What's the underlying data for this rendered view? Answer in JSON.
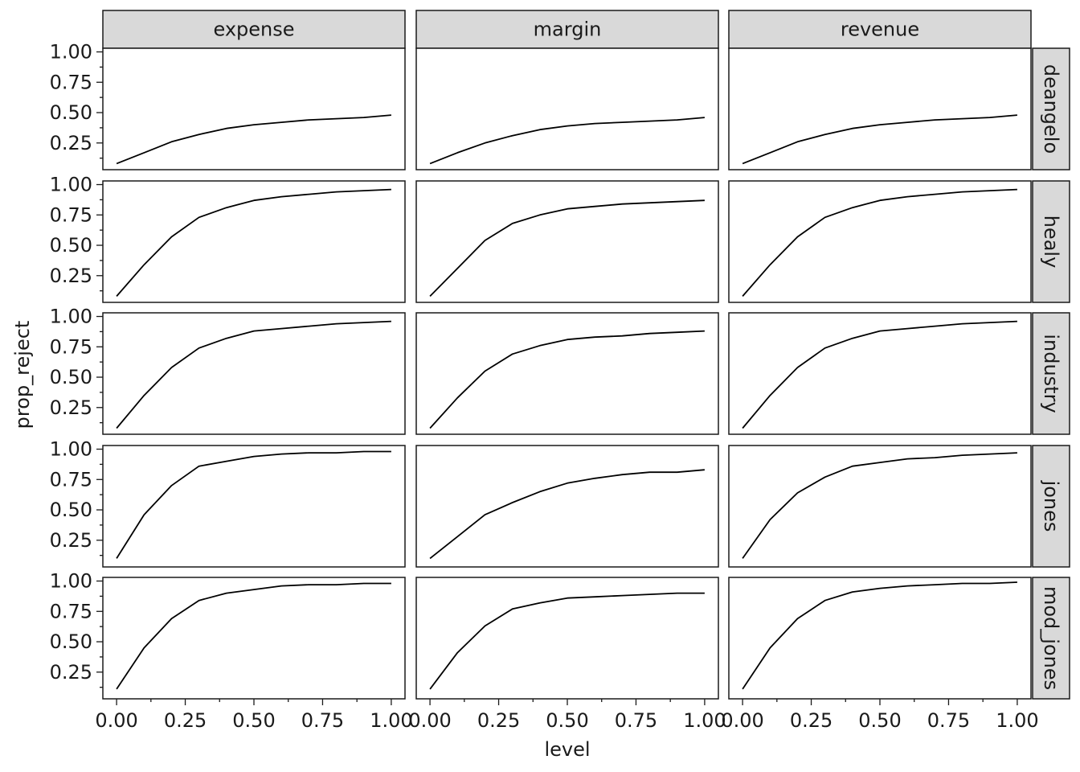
{
  "chart_data": {
    "type": "line",
    "facet_layout": "grid",
    "xlabel": "level",
    "ylabel": "prop_reject",
    "x_ticks": [
      "0.00",
      "0.25",
      "0.50",
      "0.75",
      "1.00"
    ],
    "y_ticks": [
      "0.25",
      "0.50",
      "0.75",
      "1.00"
    ],
    "xlim": [
      -0.05,
      1.05
    ],
    "ylim": [
      0.03,
      1.03
    ],
    "x_minor_step": 0.125,
    "y_minor_step": 0.125,
    "grid": false,
    "col_facets": [
      "expense",
      "margin",
      "revenue"
    ],
    "row_facets": [
      "deangelo",
      "healy",
      "industry",
      "jones",
      "mod_jones"
    ],
    "line_color": "#000000",
    "strip_color": "#d9d9d9",
    "x": [
      0,
      0.1,
      0.2,
      0.3,
      0.4,
      0.5,
      0.6,
      0.7,
      0.8,
      0.9,
      1.0
    ],
    "panels": [
      {
        "row": "deangelo",
        "col": "expense",
        "values": [
          0.08,
          0.17,
          0.26,
          0.32,
          0.37,
          0.4,
          0.42,
          0.44,
          0.45,
          0.46,
          0.48
        ]
      },
      {
        "row": "deangelo",
        "col": "margin",
        "values": [
          0.08,
          0.17,
          0.25,
          0.31,
          0.36,
          0.39,
          0.41,
          0.42,
          0.43,
          0.44,
          0.46
        ]
      },
      {
        "row": "deangelo",
        "col": "revenue",
        "values": [
          0.08,
          0.17,
          0.26,
          0.32,
          0.37,
          0.4,
          0.42,
          0.44,
          0.45,
          0.46,
          0.48
        ]
      },
      {
        "row": "healy",
        "col": "expense",
        "values": [
          0.08,
          0.34,
          0.57,
          0.73,
          0.81,
          0.87,
          0.9,
          0.92,
          0.94,
          0.95,
          0.96
        ]
      },
      {
        "row": "healy",
        "col": "margin",
        "values": [
          0.08,
          0.31,
          0.54,
          0.68,
          0.75,
          0.8,
          0.82,
          0.84,
          0.85,
          0.86,
          0.87
        ]
      },
      {
        "row": "healy",
        "col": "revenue",
        "values": [
          0.08,
          0.34,
          0.57,
          0.73,
          0.81,
          0.87,
          0.9,
          0.92,
          0.94,
          0.95,
          0.96
        ]
      },
      {
        "row": "industry",
        "col": "expense",
        "values": [
          0.08,
          0.35,
          0.58,
          0.74,
          0.82,
          0.88,
          0.9,
          0.92,
          0.94,
          0.95,
          0.96
        ]
      },
      {
        "row": "industry",
        "col": "margin",
        "values": [
          0.08,
          0.33,
          0.55,
          0.69,
          0.76,
          0.81,
          0.83,
          0.84,
          0.86,
          0.87,
          0.88
        ]
      },
      {
        "row": "industry",
        "col": "revenue",
        "values": [
          0.08,
          0.35,
          0.58,
          0.74,
          0.82,
          0.88,
          0.9,
          0.92,
          0.94,
          0.95,
          0.96
        ]
      },
      {
        "row": "jones",
        "col": "expense",
        "values": [
          0.1,
          0.46,
          0.7,
          0.86,
          0.9,
          0.94,
          0.96,
          0.97,
          0.97,
          0.98,
          0.98
        ]
      },
      {
        "row": "jones",
        "col": "margin",
        "values": [
          0.1,
          0.28,
          0.46,
          0.56,
          0.65,
          0.72,
          0.76,
          0.79,
          0.81,
          0.81,
          0.83
        ]
      },
      {
        "row": "jones",
        "col": "revenue",
        "values": [
          0.1,
          0.42,
          0.64,
          0.77,
          0.86,
          0.89,
          0.92,
          0.93,
          0.95,
          0.96,
          0.97
        ]
      },
      {
        "row": "mod_jones",
        "col": "expense",
        "values": [
          0.11,
          0.45,
          0.69,
          0.84,
          0.9,
          0.93,
          0.96,
          0.97,
          0.97,
          0.98,
          0.98
        ]
      },
      {
        "row": "mod_jones",
        "col": "margin",
        "values": [
          0.11,
          0.41,
          0.63,
          0.77,
          0.82,
          0.86,
          0.87,
          0.88,
          0.89,
          0.9,
          0.9
        ]
      },
      {
        "row": "mod_jones",
        "col": "revenue",
        "values": [
          0.11,
          0.45,
          0.69,
          0.84,
          0.91,
          0.94,
          0.96,
          0.97,
          0.98,
          0.98,
          0.99
        ]
      }
    ]
  }
}
